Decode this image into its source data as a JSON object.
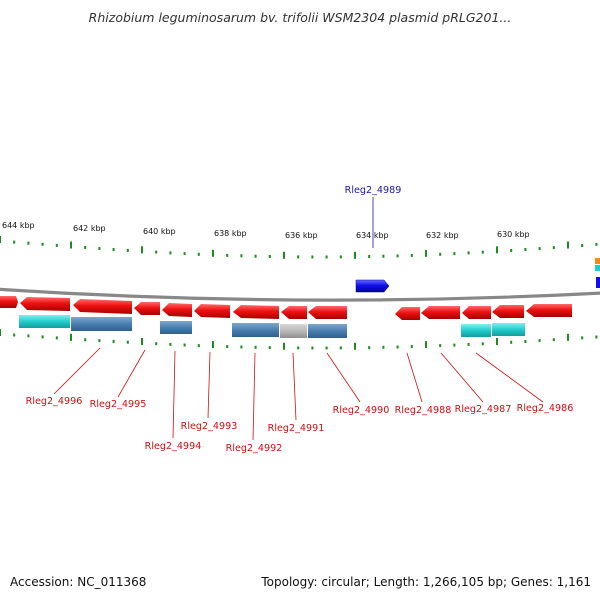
{
  "title": "Rhizobium leguminosarum bv. trifolii WSM2304 plasmid pRLG201...",
  "footer": {
    "accession": "Accession: NC_011368",
    "summary": "Topology: circular; Length: 1,266,105 bp; Genes: 1,161"
  },
  "scale_labels": [
    "644 kbp",
    "642 kbp",
    "640 kbp",
    "638 kbp",
    "636 kbp",
    "634 kbp",
    "632 kbp",
    "630 kbp"
  ],
  "top_labels": [
    "Rleg2_4989"
  ],
  "bottom_labels": [
    "Rleg2_4996",
    "Rleg2_4995",
    "Rleg2_4994",
    "Rleg2_4993",
    "Rleg2_4992",
    "Rleg2_4991",
    "Rleg2_4990",
    "Rleg2_4988",
    "Rleg2_4987",
    "Rleg2_4986"
  ],
  "colors": {
    "backbone": "#888888",
    "reverse_gene": "#ee1111",
    "forward_gene": "#1010ee",
    "tick": "#1f8a1f",
    "top_label": "#1a1aaa",
    "bottom_label": "#cc1111",
    "cog_cyan": "#22cccc",
    "cog_steel": "#4a7fb0",
    "cog_grey": "#b8b8b8"
  }
}
